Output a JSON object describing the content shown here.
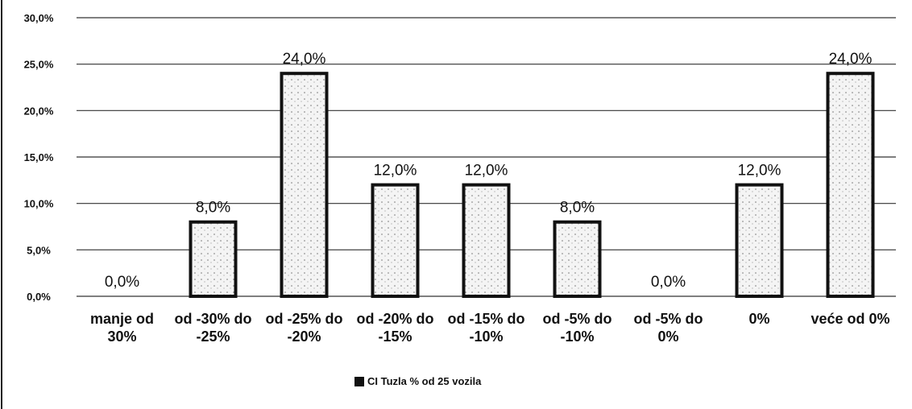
{
  "chart_data": {
    "type": "bar",
    "categories": [
      "manje od 30%",
      "od -30% do -25%",
      "od -25% do -20%",
      "od -20% do -15%",
      "od -15% do -10%",
      "od -5% do -10%",
      "od -5% do 0%",
      "0%",
      "veće od 0%"
    ],
    "series": [
      {
        "name": "CI Tuzla % od 25 vozila",
        "color": "#111111",
        "values": [
          0,
          8,
          24,
          12,
          12,
          8,
          0,
          12,
          24
        ],
        "value_labels": [
          "0,0%",
          "8,0%",
          "24,0%",
          "12,0%",
          "12,0%",
          "8,0%",
          "0,0%",
          "12,0%",
          "24,0%"
        ]
      }
    ],
    "ylim": [
      0,
      30
    ],
    "yticks": [
      {
        "value": 0,
        "label": "0,0%"
      },
      {
        "value": 5,
        "label": "5,0%"
      },
      {
        "value": 10,
        "label": "10,0%"
      },
      {
        "value": 15,
        "label": "15,0%"
      },
      {
        "value": 20,
        "label": "20,0%"
      },
      {
        "value": 25,
        "label": "25,0%"
      },
      {
        "value": 30,
        "label": "30,0%"
      }
    ],
    "grid": true
  }
}
